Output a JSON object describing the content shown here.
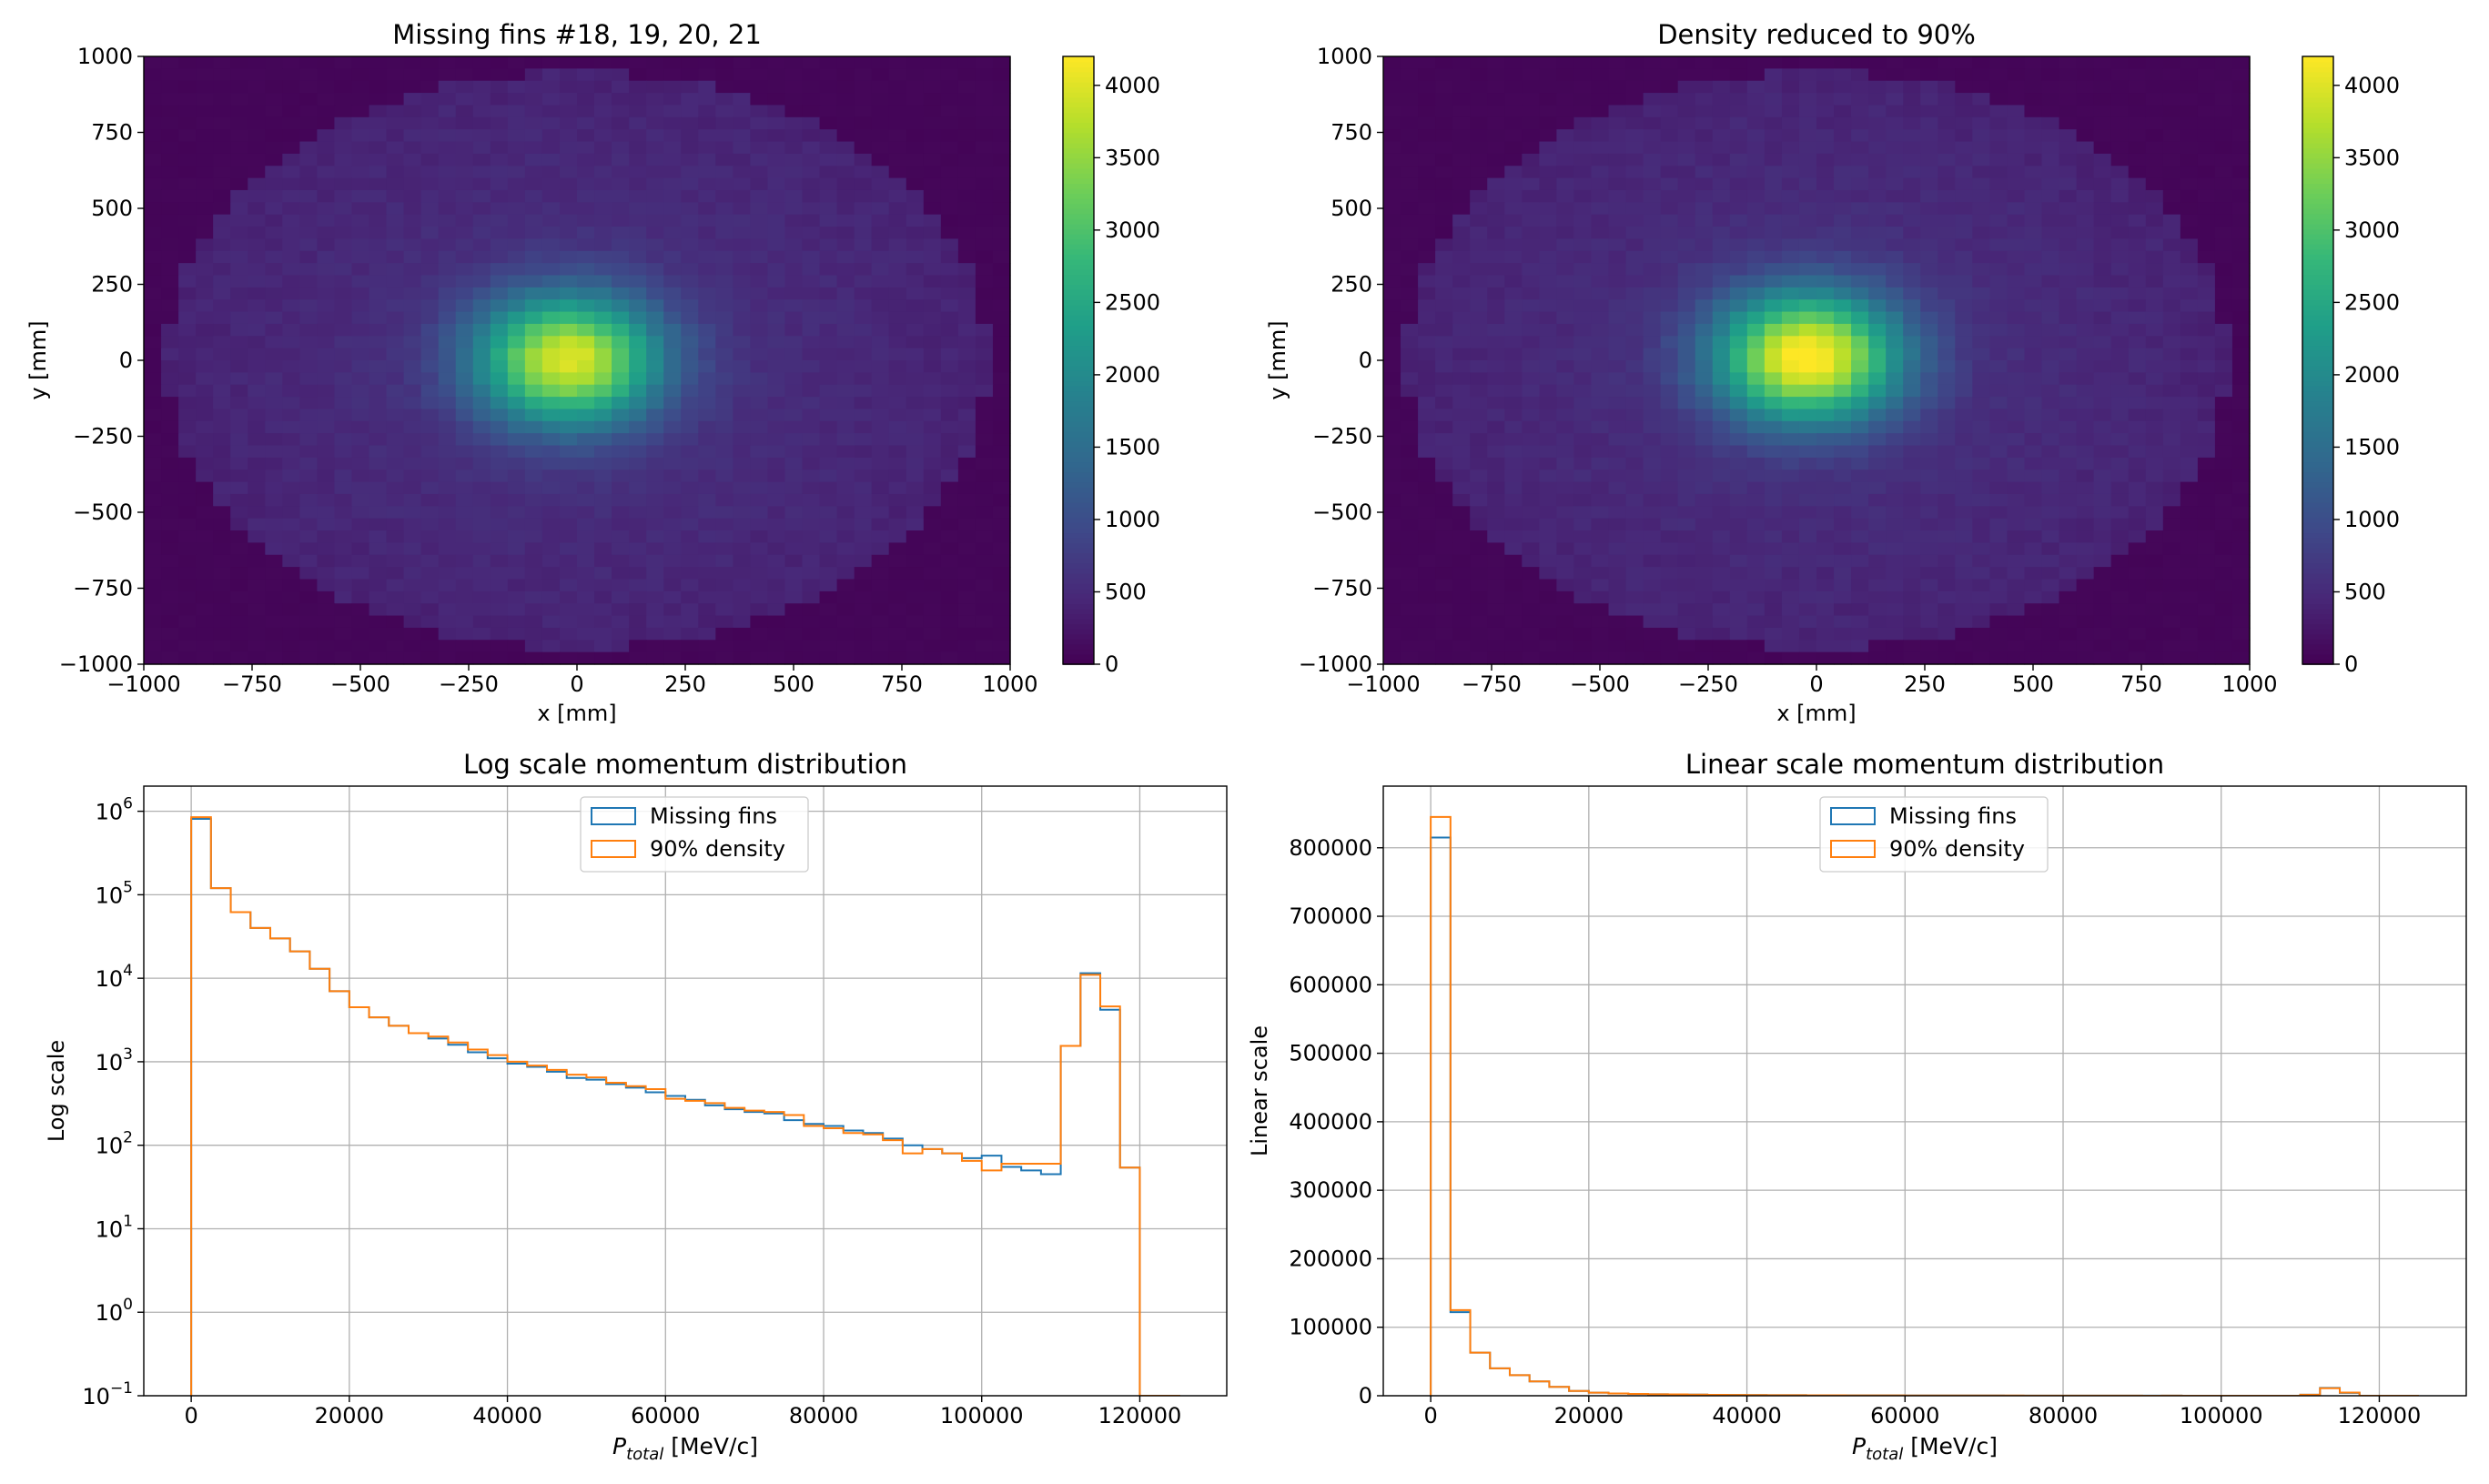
{
  "colors": {
    "missing": "#1f77b4",
    "density": "#ff7f0e",
    "grid": "#b0b0b0",
    "viridis": [
      "#440154",
      "#482878",
      "#3e4989",
      "#31688e",
      "#26828e",
      "#1f9e89",
      "#35b779",
      "#6ece58",
      "#b5de2b",
      "#fde725"
    ]
  },
  "chart_data": [
    {
      "type": "heatmap",
      "title": "Missing fins #18, 19, 20, 21",
      "xlabel": "x [mm]",
      "ylabel": "y [mm]",
      "xlim": [
        -1000,
        1000
      ],
      "ylim": [
        -1000,
        1000
      ],
      "xticks": [
        "−1000",
        "−750",
        "−500",
        "−250",
        "0",
        "250",
        "500",
        "750",
        "1000"
      ],
      "yticks": [
        "−1000",
        "−750",
        "−500",
        "−250",
        "0",
        "250",
        "500",
        "750",
        "1000"
      ],
      "bins": 50,
      "peak_value": 3900,
      "peak_center": [
        -20,
        0
      ],
      "core_sigma_mm": 150,
      "halo_value": 430,
      "ellipse_radii_mm": [
        950,
        950
      ],
      "colorbar": {
        "min": 0,
        "max": 4200,
        "ticks": [
          "0",
          "500",
          "1000",
          "1500",
          "2000",
          "2500",
          "3000",
          "3500",
          "4000"
        ]
      }
    },
    {
      "type": "heatmap",
      "title": "Density reduced to 90%",
      "xlabel": "x [mm]",
      "ylabel": "y [mm]",
      "xlim": [
        -1000,
        1000
      ],
      "ylim": [
        -1000,
        1000
      ],
      "xticks": [
        "−1000",
        "−750",
        "−500",
        "−250",
        "0",
        "250",
        "500",
        "750",
        "1000"
      ],
      "yticks": [
        "−1000",
        "−750",
        "−500",
        "−250",
        "0",
        "250",
        "500",
        "750",
        "1000"
      ],
      "bins": 50,
      "peak_value": 4200,
      "peak_center": [
        -20,
        10
      ],
      "core_sigma_mm": 150,
      "halo_value": 430,
      "ellipse_radii_mm": [
        950,
        950
      ],
      "colorbar": {
        "min": 0,
        "max": 4200,
        "ticks": [
          "0",
          "500",
          "1000",
          "1500",
          "2000",
          "2500",
          "3000",
          "3500",
          "4000"
        ]
      }
    },
    {
      "type": "line",
      "scale": "log",
      "title": "Log scale momentum distribution",
      "xlabel": "P",
      "xlabel_sub": "total",
      "xlabel_unit": " [MeV/c]",
      "ylabel": "Log scale",
      "xlim": [
        -6000,
        131000
      ],
      "ylim": [
        0.1,
        2000000
      ],
      "xticks": [
        0,
        20000,
        40000,
        60000,
        80000,
        100000,
        120000
      ],
      "xtick_labels": [
        "0",
        "20000",
        "40000",
        "60000",
        "80000",
        "100000",
        "120000"
      ],
      "yticks": [
        0.1,
        1,
        10,
        100,
        1000,
        10000,
        100000,
        1000000
      ],
      "ytick_labels": [
        [
          "10",
          "−1"
        ],
        [
          "10",
          "0"
        ],
        [
          "10",
          "1"
        ],
        [
          "10",
          "2"
        ],
        [
          "10",
          "3"
        ],
        [
          "10",
          "4"
        ],
        [
          "10",
          "5"
        ],
        [
          "10",
          "6"
        ]
      ],
      "legend": "top-center",
      "bin_edges": [
        0,
        2500,
        5000,
        7500,
        10000,
        12500,
        15000,
        17500,
        20000,
        22500,
        25000,
        27500,
        30000,
        32500,
        35000,
        37500,
        40000,
        42500,
        45000,
        47500,
        50000,
        52500,
        55000,
        57500,
        60000,
        62500,
        65000,
        67500,
        70000,
        72500,
        75000,
        77500,
        80000,
        82500,
        85000,
        87500,
        90000,
        92500,
        95000,
        97500,
        100000,
        102500,
        105000,
        107500,
        110000,
        112500,
        115000,
        117500,
        120000,
        122500,
        125000
      ],
      "series": [
        {
          "name": "Missing fins",
          "values": [
            810000,
            120000,
            62000,
            40000,
            30000,
            21000,
            13000,
            7000,
            4500,
            3400,
            2700,
            2200,
            1900,
            1600,
            1300,
            1100,
            950,
            870,
            760,
            640,
            610,
            540,
            490,
            430,
            390,
            350,
            300,
            270,
            250,
            240,
            200,
            180,
            170,
            150,
            140,
            120,
            100,
            90,
            80,
            70,
            75,
            55,
            50,
            45,
            1550,
            11500,
            4200,
            54,
            0.1,
            0.1
          ]
        },
        {
          "name": "90% density",
          "values": [
            850000,
            120000,
            62000,
            40000,
            30000,
            21000,
            13000,
            7000,
            4500,
            3400,
            2700,
            2200,
            2000,
            1700,
            1400,
            1200,
            1000,
            900,
            800,
            700,
            650,
            560,
            510,
            470,
            360,
            340,
            320,
            280,
            260,
            250,
            230,
            170,
            160,
            140,
            135,
            115,
            80,
            90,
            80,
            65,
            50,
            60,
            60,
            60,
            1550,
            11000,
            4600,
            54,
            0.1,
            0.1
          ]
        }
      ]
    },
    {
      "type": "line",
      "scale": "linear",
      "title": "Linear scale momentum distribution",
      "xlabel": "P",
      "xlabel_sub": "total",
      "xlabel_unit": " [MeV/c]",
      "ylabel": "Linear scale",
      "xlim": [
        -6000,
        131000
      ],
      "ylim": [
        0,
        890000
      ],
      "xticks": [
        0,
        20000,
        40000,
        60000,
        80000,
        100000,
        120000
      ],
      "xtick_labels": [
        "0",
        "20000",
        "40000",
        "60000",
        "80000",
        "100000",
        "120000"
      ],
      "yticks": [
        0,
        100000,
        200000,
        300000,
        400000,
        500000,
        600000,
        700000,
        800000
      ],
      "ytick_labels": [
        "0",
        "100000",
        "200000",
        "300000",
        "400000",
        "500000",
        "600000",
        "700000",
        "800000"
      ],
      "legend": "top-center",
      "bin_edges": [
        0,
        2500,
        5000,
        7500,
        10000,
        12500,
        15000,
        17500,
        20000,
        22500,
        25000,
        27500,
        30000,
        32500,
        35000,
        37500,
        40000,
        42500,
        45000,
        47500,
        50000,
        52500,
        55000,
        57500,
        60000,
        62500,
        65000,
        67500,
        70000,
        72500,
        75000,
        77500,
        80000,
        82500,
        85000,
        87500,
        90000,
        92500,
        95000,
        97500,
        100000,
        102500,
        105000,
        107500,
        110000,
        112500,
        115000,
        117500,
        120000,
        122500,
        125000
      ],
      "series": [
        {
          "name": "Missing fins",
          "values": [
            815000,
            122000,
            63000,
            40000,
            30000,
            21000,
            13000,
            7000,
            4500,
            3400,
            2700,
            2200,
            1900,
            1600,
            1300,
            1100,
            950,
            870,
            760,
            640,
            610,
            540,
            490,
            430,
            390,
            350,
            300,
            270,
            250,
            240,
            200,
            180,
            170,
            150,
            140,
            120,
            100,
            90,
            80,
            70,
            75,
            55,
            50,
            45,
            1550,
            11500,
            4200,
            54,
            0,
            0
          ]
        },
        {
          "name": "90% density",
          "values": [
            845000,
            125000,
            63000,
            40000,
            30000,
            21000,
            13000,
            7000,
            4500,
            3400,
            2700,
            2200,
            2000,
            1700,
            1400,
            1200,
            1000,
            900,
            800,
            700,
            650,
            560,
            510,
            470,
            360,
            340,
            320,
            280,
            260,
            250,
            230,
            170,
            160,
            140,
            135,
            115,
            80,
            90,
            80,
            65,
            50,
            60,
            60,
            60,
            1550,
            11000,
            4600,
            54,
            0,
            0
          ]
        }
      ]
    }
  ]
}
